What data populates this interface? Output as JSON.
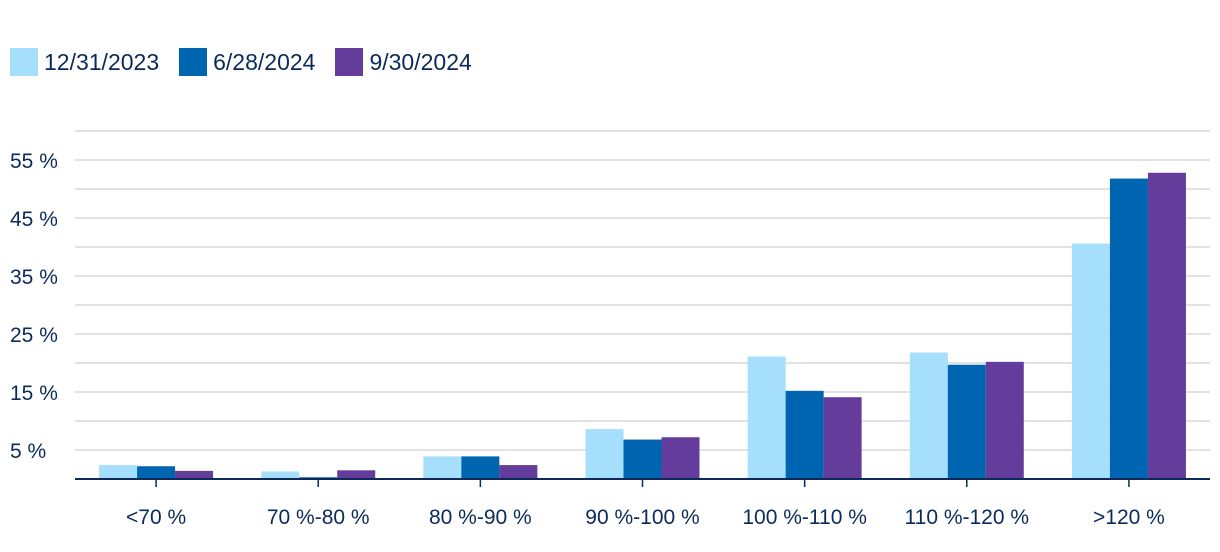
{
  "chart_data": {
    "type": "bar",
    "categories": [
      "<70 %",
      "70 %-80 %",
      "80 %-90 %",
      "90 %-100 %",
      "100 %-110 %",
      "110 %-120 %",
      ">120 %"
    ],
    "series": [
      {
        "name": "12/31/2023",
        "color": "#a6dffb",
        "values": [
          2.4,
          1.3,
          3.9,
          8.6,
          21.1,
          21.8,
          40.6
        ]
      },
      {
        "name": "6/28/2024",
        "color": "#0065b0",
        "values": [
          2.2,
          0.3,
          3.9,
          6.8,
          15.2,
          19.7,
          51.8
        ]
      },
      {
        "name": "9/30/2024",
        "color": "#643c9c",
        "values": [
          1.4,
          1.5,
          2.4,
          7.2,
          14.1,
          20.2,
          52.8
        ]
      }
    ],
    "yticks": [
      "5 %",
      "15 %",
      "25 %",
      "35 %",
      "45 %",
      "55 %"
    ],
    "ytick_values": [
      5,
      15,
      25,
      35,
      45,
      55
    ],
    "ylim": [
      0,
      60
    ],
    "grid": true,
    "title": "",
    "xlabel": "",
    "ylabel": ""
  }
}
